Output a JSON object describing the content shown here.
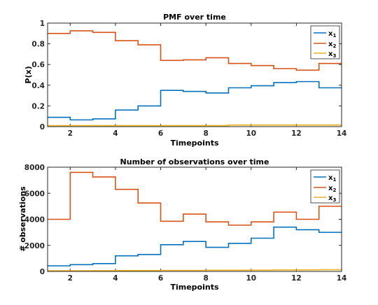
{
  "chart_data": [
    {
      "type": "line",
      "step": "post",
      "title": "PMF over time",
      "xlabel": "Timepoints",
      "ylabel": "P(x)",
      "xlim": [
        1,
        14
      ],
      "ylim": [
        0,
        1
      ],
      "xticks": [
        "2",
        "4",
        "6",
        "8",
        "10",
        "12",
        "14"
      ],
      "yticks": [
        "0",
        "0.2",
        "0.4",
        "0.6",
        "0.8",
        "1"
      ],
      "legend_position": "top-right",
      "x": [
        1,
        2,
        3,
        4,
        5,
        6,
        7,
        8,
        9,
        10,
        11,
        12,
        13,
        14
      ],
      "series": [
        {
          "name": "x1",
          "color": "#0072BD",
          "values": [
            0.09,
            0.065,
            0.075,
            0.16,
            0.2,
            0.35,
            0.34,
            0.325,
            0.375,
            0.395,
            0.425,
            0.435,
            0.375,
            0.375
          ]
        },
        {
          "name": "x2",
          "color": "#D95319",
          "values": [
            0.9,
            0.925,
            0.91,
            0.83,
            0.79,
            0.64,
            0.645,
            0.665,
            0.61,
            0.59,
            0.56,
            0.545,
            0.61,
            0.61
          ]
        },
        {
          "name": "x3",
          "color": "#EDB120",
          "values": [
            0.01,
            0.01,
            0.01,
            0.01,
            0.01,
            0.01,
            0.01,
            0.01,
            0.015,
            0.015,
            0.015,
            0.015,
            0.015,
            0.015
          ]
        }
      ]
    },
    {
      "type": "line",
      "step": "post",
      "title": "Number of observations over time",
      "xlabel": "Timepoints",
      "ylabel": "# observations",
      "xlim": [
        1,
        14
      ],
      "ylim": [
        0,
        8000
      ],
      "xticks": [
        "2",
        "4",
        "6",
        "8",
        "10",
        "12",
        "14"
      ],
      "yticks": [
        "0",
        "2000",
        "4000",
        "6000",
        "8000"
      ],
      "legend_position": "top-right",
      "x": [
        1,
        2,
        3,
        4,
        5,
        6,
        7,
        8,
        9,
        10,
        11,
        12,
        13,
        14
      ],
      "series": [
        {
          "name": "x1",
          "color": "#0072BD",
          "values": [
            430,
            520,
            600,
            1200,
            1300,
            2050,
            2300,
            1850,
            2150,
            2550,
            3400,
            3200,
            3000,
            3000
          ]
        },
        {
          "name": "x2",
          "color": "#D95319",
          "values": [
            4000,
            7600,
            7250,
            6300,
            5250,
            3850,
            4400,
            3800,
            3550,
            3800,
            4550,
            4000,
            5000,
            5000
          ]
        },
        {
          "name": "x3",
          "color": "#EDB120",
          "values": [
            50,
            50,
            60,
            70,
            70,
            80,
            80,
            90,
            90,
            100,
            110,
            120,
            130,
            130
          ]
        }
      ]
    }
  ]
}
